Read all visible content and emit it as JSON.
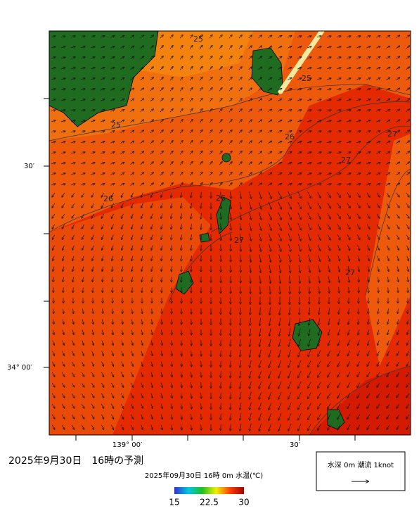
{
  "title": "2025年9月30日　16時の予測",
  "map": {
    "subtitle": "2025年09月30日 16時 0m 水温(℃)",
    "lat_labels": [
      "30′",
      "34° 00′"
    ],
    "lon_labels": [
      "139° 00′",
      "30′"
    ],
    "contour_labels": [
      "25",
      "25",
      "25",
      "26",
      "26",
      "26",
      "27",
      "27",
      "27",
      "27"
    ],
    "legend": "水深 0m 潮流 1knot",
    "colorbar": {
      "lim": [
        15,
        30
      ],
      "ticks": [
        15,
        22.5,
        30
      ]
    }
  }
}
